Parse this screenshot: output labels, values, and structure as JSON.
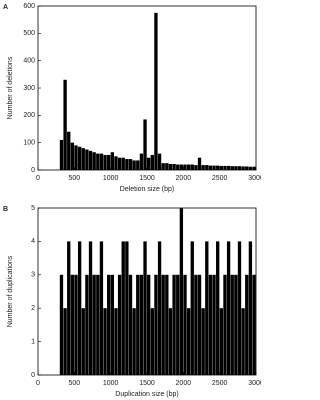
{
  "chart_data": [
    {
      "type": "histogram",
      "panel_label": "A",
      "xlabel": "Deletion size (bp)",
      "ylabel": "Number of deletions",
      "color": "#000000",
      "bins": [
        300,
        350,
        400,
        450,
        500,
        550,
        600,
        650,
        700,
        750,
        800,
        850,
        900,
        950,
        1000,
        1050,
        1100,
        1150,
        1200,
        1250,
        1300,
        1350,
        1400,
        1450,
        1500,
        1550,
        1600,
        1650,
        1700,
        1750,
        1800,
        1850,
        1900,
        1950,
        2000,
        2050,
        2100,
        2150,
        2200,
        2250,
        2300,
        2350,
        2400,
        2450,
        2500,
        2550,
        2600,
        2650,
        2700,
        2750,
        2800,
        2850,
        2900,
        2950,
        3000
      ],
      "values": [
        110,
        330,
        140,
        100,
        90,
        85,
        80,
        75,
        70,
        65,
        60,
        60,
        55,
        55,
        65,
        50,
        45,
        45,
        40,
        40,
        35,
        35,
        60,
        185,
        45,
        55,
        575,
        60,
        25,
        25,
        22,
        22,
        20,
        20,
        20,
        20,
        20,
        18,
        45,
        18,
        18,
        16,
        16,
        16,
        15,
        15,
        15,
        14,
        14,
        14,
        13,
        13,
        12,
        12
      ],
      "xlim": [
        0,
        3000
      ],
      "xticks": [
        0,
        500,
        1000,
        1500,
        2000,
        2500,
        3000
      ],
      "ylim": [
        0,
        600
      ],
      "yticks": [
        0,
        100,
        200,
        300,
        400,
        500,
        600
      ]
    },
    {
      "type": "histogram",
      "panel_label": "B",
      "xlabel": "Duplication size (bp)",
      "ylabel": "Number of duplications",
      "color": "#000000",
      "bins": [
        300,
        350,
        400,
        450,
        500,
        550,
        600,
        650,
        700,
        750,
        800,
        850,
        900,
        950,
        1000,
        1050,
        1100,
        1150,
        1200,
        1250,
        1300,
        1350,
        1400,
        1450,
        1500,
        1550,
        1600,
        1650,
        1700,
        1750,
        1800,
        1850,
        1900,
        1950,
        2000,
        2050,
        2100,
        2150,
        2200,
        2250,
        2300,
        2350,
        2400,
        2450,
        2500,
        2550,
        2600,
        2650,
        2700,
        2750,
        2800,
        2850,
        2900,
        2950,
        3000
      ],
      "values": [
        3,
        2,
        4,
        3,
        3,
        4,
        2,
        3,
        4,
        3,
        3,
        4,
        2,
        3,
        3,
        2,
        3,
        4,
        4,
        3,
        2,
        3,
        3,
        4,
        3,
        2,
        3,
        4,
        3,
        3,
        2,
        3,
        3,
        5,
        3,
        2,
        4,
        3,
        3,
        2,
        4,
        3,
        3,
        4,
        2,
        3,
        4,
        3,
        3,
        4,
        2,
        3,
        4,
        3
      ],
      "xlim": [
        0,
        3000
      ],
      "xticks": [
        0,
        500,
        1000,
        1500,
        2000,
        2500,
        3000
      ],
      "ylim": [
        0,
        5
      ],
      "yticks": [
        0,
        1,
        2,
        3,
        4,
        5
      ]
    }
  ]
}
